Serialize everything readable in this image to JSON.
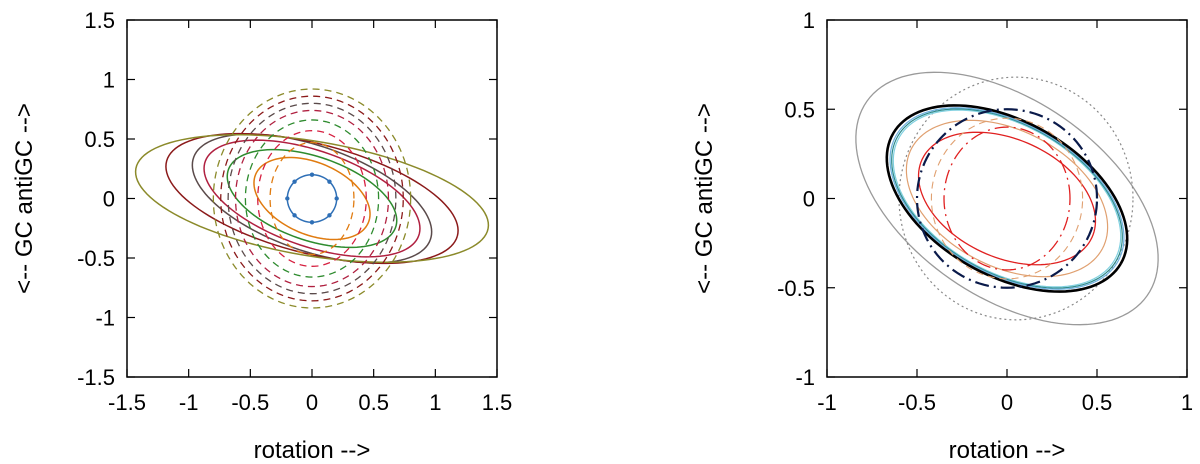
{
  "chart_data": [
    {
      "type": "line",
      "xlabel": "rotation -->",
      "ylabel": "<-- GC antiGC -->",
      "xlim": [
        -1.5,
        1.5
      ],
      "ylim": [
        -1.5,
        1.5
      ],
      "xticks": [
        "-1.5",
        "-1",
        "-0.5",
        "0",
        "0.5",
        "1",
        "1.5"
      ],
      "yticks": [
        "-1.5",
        "-1",
        "-0.5",
        "0",
        "0.5",
        "1",
        "1.5"
      ],
      "grid": false,
      "legend": "none",
      "series": [
        {
          "shape": "ellipse",
          "style": "solid",
          "color": "#2e6fb6",
          "width": 1.5,
          "markers": true,
          "cx": 0,
          "cy": 0,
          "a": 0.2,
          "b": 0.2,
          "angle_deg": 0
        },
        {
          "shape": "ellipse",
          "style": "solid",
          "color": "#e07b10",
          "width": 1.5,
          "cx": 0,
          "cy": 0,
          "a": 0.5,
          "b": 0.3,
          "angle_deg": -25
        },
        {
          "shape": "ellipse",
          "style": "solid",
          "color": "#2e8b2e",
          "width": 1.5,
          "cx": 0,
          "cy": 0,
          "a": 0.72,
          "b": 0.35,
          "angle_deg": -20
        },
        {
          "shape": "ellipse",
          "style": "solid",
          "color": "#b02040",
          "width": 1.5,
          "cx": 0,
          "cy": 0,
          "a": 0.92,
          "b": 0.4,
          "angle_deg": -20
        },
        {
          "shape": "ellipse",
          "style": "solid",
          "color": "#5a4a4a",
          "width": 1.5,
          "cx": 0,
          "cy": 0,
          "a": 1.02,
          "b": 0.44,
          "angle_deg": -20
        },
        {
          "shape": "ellipse",
          "style": "solid",
          "color": "#8b1a1a",
          "width": 1.5,
          "cx": 0,
          "cy": 0,
          "a": 1.22,
          "b": 0.46,
          "angle_deg": -15
        },
        {
          "shape": "ellipse",
          "style": "solid",
          "color": "#8b8a2a",
          "width": 1.5,
          "cx": 0,
          "cy": 0,
          "a": 1.45,
          "b": 0.48,
          "angle_deg": -10
        },
        {
          "shape": "ellipse",
          "style": "dashed",
          "color": "#e07b10",
          "width": 1.3,
          "cx": 0,
          "cy": 0,
          "a": 0.34,
          "b": 0.47,
          "angle_deg": 0
        },
        {
          "shape": "ellipse",
          "style": "dashed",
          "color": "#d62040",
          "width": 1.3,
          "cx": 0,
          "cy": 0,
          "a": 0.44,
          "b": 0.57,
          "angle_deg": 0
        },
        {
          "shape": "ellipse",
          "style": "dashed",
          "color": "#2e8b2e",
          "width": 1.3,
          "cx": 0,
          "cy": 0,
          "a": 0.54,
          "b": 0.66,
          "angle_deg": 0
        },
        {
          "shape": "ellipse",
          "style": "dashed",
          "color": "#b02040",
          "width": 1.3,
          "cx": 0,
          "cy": 0,
          "a": 0.62,
          "b": 0.74,
          "angle_deg": 0
        },
        {
          "shape": "ellipse",
          "style": "dashed",
          "color": "#5a4a4a",
          "width": 1.3,
          "cx": 0,
          "cy": 0,
          "a": 0.68,
          "b": 0.8,
          "angle_deg": 0
        },
        {
          "shape": "ellipse",
          "style": "dashed",
          "color": "#8b1a1a",
          "width": 1.3,
          "cx": 0,
          "cy": 0,
          "a": 0.74,
          "b": 0.86,
          "angle_deg": 0
        },
        {
          "shape": "ellipse",
          "style": "dashed",
          "color": "#8b8a2a",
          "width": 1.3,
          "cx": 0,
          "cy": 0,
          "a": 0.8,
          "b": 0.92,
          "angle_deg": 0
        }
      ]
    },
    {
      "type": "line",
      "xlabel": "rotation -->",
      "ylabel": "<-- GC antiGC -->",
      "xlim": [
        -1,
        1
      ],
      "ylim": [
        -1,
        1
      ],
      "xticks": [
        "-1",
        "-0.5",
        "0",
        "0.5",
        "1"
      ],
      "yticks": [
        "-1",
        "-0.5",
        "0",
        "0.5",
        "1"
      ],
      "grid": false,
      "legend": "none",
      "series": [
        {
          "shape": "ellipse",
          "style": "solid",
          "color": "#9a9a9a",
          "width": 1.3,
          "cx": 0,
          "cy": 0,
          "a": 0.95,
          "b": 0.55,
          "angle_deg": -35
        },
        {
          "shape": "ellipse",
          "style": "dotted",
          "color": "#888888",
          "width": 1.2,
          "cx": 0.05,
          "cy": 0,
          "a": 0.65,
          "b": 0.68,
          "angle_deg": 0
        },
        {
          "shape": "ellipse",
          "style": "solid",
          "color": "#7fd0e0",
          "width": 1.2,
          "cx": 0,
          "cy": 0,
          "a": 0.69,
          "b": 0.41,
          "angle_deg": -30
        },
        {
          "shape": "ellipse",
          "style": "solid",
          "color": "#2e8b8b",
          "width": 1.2,
          "cx": 0,
          "cy": 0,
          "a": 0.7,
          "b": 0.415,
          "angle_deg": -30
        },
        {
          "shape": "ellipse",
          "style": "solid",
          "color": "#6fb0e0",
          "width": 1.2,
          "cx": 0,
          "cy": 0,
          "a": 0.71,
          "b": 0.42,
          "angle_deg": -30
        },
        {
          "shape": "ellipse",
          "style": "solid",
          "color": "#000000",
          "width": 2.6,
          "cx": 0,
          "cy": 0,
          "a": 0.73,
          "b": 0.43,
          "angle_deg": -30
        },
        {
          "shape": "ellipse",
          "style": "solid",
          "color": "#e0a070",
          "width": 1.2,
          "cx": 0,
          "cy": 0,
          "a": 0.6,
          "b": 0.38,
          "angle_deg": -28
        },
        {
          "shape": "ellipse",
          "style": "solid",
          "color": "#e02020",
          "width": 1.3,
          "cx": 0,
          "cy": 0,
          "a": 0.52,
          "b": 0.33,
          "angle_deg": -25
        },
        {
          "shape": "ellipse",
          "style": "dashdot",
          "color": "#0a1a4a",
          "width": 2.2,
          "cx": 0,
          "cy": 0,
          "a": 0.5,
          "b": 0.5,
          "angle_deg": 0
        },
        {
          "shape": "ellipse",
          "style": "dashdot",
          "color": "#e02020",
          "width": 1.3,
          "cx": 0,
          "cy": 0,
          "a": 0.35,
          "b": 0.4,
          "angle_deg": 0
        },
        {
          "shape": "ellipse",
          "style": "dashed",
          "color": "#e0a070",
          "width": 1.1,
          "cx": 0,
          "cy": 0,
          "a": 0.42,
          "b": 0.45,
          "angle_deg": 0
        }
      ]
    }
  ]
}
